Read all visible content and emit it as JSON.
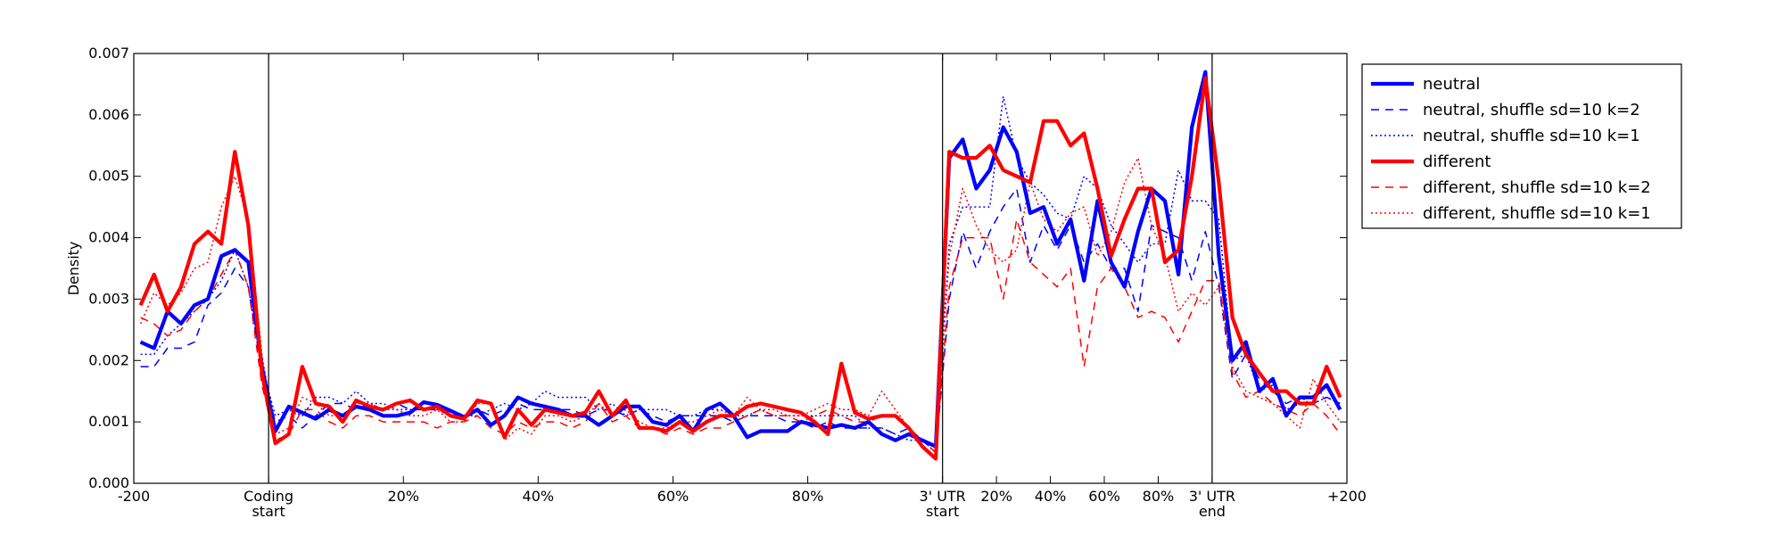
{
  "chart_data": {
    "type": "line",
    "title": "",
    "xlabel": "",
    "ylabel": "Density",
    "ylim": [
      0,
      0.007
    ],
    "y_ticks": [
      "0.000",
      "0.001",
      "0.002",
      "0.003",
      "0.004",
      "0.005",
      "0.006",
      "0.007"
    ],
    "y_tick_values": [
      0,
      0.001,
      0.002,
      0.003,
      0.004,
      0.005,
      0.006,
      0.007
    ],
    "x_ticks": [
      {
        "label": "-200",
        "x": 0
      },
      {
        "label": "Coding\nstart",
        "x": 20
      },
      {
        "label": "20%",
        "x": 40
      },
      {
        "label": "40%",
        "x": 60
      },
      {
        "label": "60%",
        "x": 80
      },
      {
        "label": "80%",
        "x": 100
      },
      {
        "label": "3' UTR\nstart",
        "x": 120
      },
      {
        "label": "20%",
        "x": 128
      },
      {
        "label": "40%",
        "x": 136
      },
      {
        "label": "60%",
        "x": 144
      },
      {
        "label": "80%",
        "x": 152
      },
      {
        "label": "3' UTR\nend",
        "x": 160
      },
      {
        "label": "+200",
        "x": 180
      }
    ],
    "region_boundaries": [
      20,
      120,
      160
    ],
    "xlim": [
      0,
      180
    ],
    "legend_position": "outside-right",
    "x": [
      1,
      3,
      5,
      7,
      9,
      11,
      13,
      15,
      17,
      19,
      21,
      23,
      25,
      27,
      29,
      31,
      33,
      35,
      37,
      39,
      41,
      43,
      45,
      47,
      49,
      51,
      53,
      55,
      57,
      59,
      61,
      63,
      65,
      67,
      69,
      71,
      73,
      75,
      77,
      79,
      81,
      83,
      85,
      87,
      89,
      91,
      93,
      95,
      97,
      99,
      101,
      103,
      105,
      107,
      109,
      111,
      113,
      115,
      117,
      119,
      121,
      123,
      125,
      127,
      129,
      131,
      133,
      135,
      137,
      139,
      141,
      143,
      145,
      147,
      149,
      151,
      153,
      155,
      157,
      159,
      161,
      163,
      165,
      167,
      169,
      171,
      173,
      175,
      177,
      179
    ],
    "series": [
      {
        "name": "neutral",
        "color": "#0000ff",
        "style": "solid",
        "width": 4.2,
        "values": [
          0.0023,
          0.0022,
          0.0028,
          0.0026,
          0.0029,
          0.003,
          0.0037,
          0.0038,
          0.0036,
          0.0019,
          0.00085,
          0.00125,
          0.00115,
          0.00105,
          0.0012,
          0.0011,
          0.00125,
          0.0012,
          0.0011,
          0.0011,
          0.00115,
          0.00132,
          0.00128,
          0.00118,
          0.00108,
          0.0012,
          0.00095,
          0.0011,
          0.0014,
          0.0013,
          0.00125,
          0.0012,
          0.0011,
          0.0011,
          0.00095,
          0.0011,
          0.00125,
          0.00125,
          0.001,
          0.00095,
          0.0011,
          0.00085,
          0.0012,
          0.0013,
          0.0011,
          0.00075,
          0.00085,
          0.00085,
          0.00085,
          0.001,
          0.00095,
          0.0009,
          0.00095,
          0.0009,
          0.001,
          0.0008,
          0.0007,
          0.0008,
          0.0007,
          0.0006,
          0.0053,
          0.0056,
          0.0048,
          0.0051,
          0.0058,
          0.0054,
          0.0044,
          0.0045,
          0.0039,
          0.0043,
          0.0033,
          0.0046,
          0.0036,
          0.0032,
          0.0041,
          0.0048,
          0.0046,
          0.0034,
          0.0058,
          0.0067,
          0.0037,
          0.002,
          0.0023,
          0.0015,
          0.0017,
          0.0011,
          0.0014,
          0.0014,
          0.0016,
          0.0012
        ]
      },
      {
        "name": "neutral, shuffle sd=10 k=2",
        "color": "#0000ff",
        "style": "dashed",
        "width": 1.5,
        "values": [
          0.0019,
          0.0019,
          0.0022,
          0.0022,
          0.0023,
          0.0029,
          0.0031,
          0.0035,
          0.0032,
          0.0018,
          0.001,
          0.0011,
          0.0009,
          0.0011,
          0.0013,
          0.0013,
          0.0012,
          0.0013,
          0.0012,
          0.0013,
          0.0012,
          0.0012,
          0.0012,
          0.0011,
          0.0011,
          0.0012,
          0.0011,
          0.0012,
          0.0013,
          0.0012,
          0.0012,
          0.0012,
          0.0012,
          0.0011,
          0.0012,
          0.0012,
          0.0011,
          0.0012,
          0.0011,
          0.001,
          0.0011,
          0.0011,
          0.0011,
          0.0011,
          0.001,
          0.0011,
          0.0011,
          0.0011,
          0.001,
          0.001,
          0.0009,
          0.001,
          0.0009,
          0.0009,
          0.0009,
          0.0009,
          0.0008,
          0.0009,
          0.0007,
          0.0005,
          0.003,
          0.0041,
          0.0035,
          0.0041,
          0.0045,
          0.0048,
          0.0036,
          0.0042,
          0.0038,
          0.0042,
          0.0036,
          0.0039,
          0.0035,
          0.0035,
          0.0028,
          0.0042,
          0.0041,
          0.004,
          0.0033,
          0.0041,
          0.0032,
          0.0017,
          0.0021,
          0.0017,
          0.0015,
          0.0013,
          0.0014,
          0.0013,
          0.0014,
          0.0013
        ]
      },
      {
        "name": "neutral, shuffle sd=10 k=1",
        "color": "#0000ff",
        "style": "dotted",
        "width": 1.5,
        "values": [
          0.0021,
          0.0021,
          0.0024,
          0.0026,
          0.0028,
          0.003,
          0.0033,
          0.0038,
          0.0032,
          0.0019,
          0.0011,
          0.0012,
          0.0011,
          0.0014,
          0.0014,
          0.0013,
          0.0015,
          0.0013,
          0.0013,
          0.0012,
          0.0012,
          0.0012,
          0.0012,
          0.0012,
          0.0011,
          0.0011,
          0.0012,
          0.0013,
          0.0012,
          0.0013,
          0.0015,
          0.0014,
          0.0014,
          0.0014,
          0.0012,
          0.0013,
          0.0011,
          0.0012,
          0.0012,
          0.0012,
          0.0011,
          0.0011,
          0.0012,
          0.0012,
          0.0011,
          0.0011,
          0.0012,
          0.0011,
          0.0011,
          0.0011,
          0.0011,
          0.0011,
          0.0011,
          0.0011,
          0.0009,
          0.0009,
          0.0008,
          0.0007,
          0.0007,
          0.0006,
          0.0039,
          0.0045,
          0.0045,
          0.0045,
          0.0063,
          0.0053,
          0.0049,
          0.0047,
          0.0044,
          0.0043,
          0.005,
          0.0048,
          0.0042,
          0.0039,
          0.0036,
          0.0039,
          0.0039,
          0.0051,
          0.0046,
          0.0046,
          0.0043,
          0.002,
          0.0021,
          0.0015,
          0.0016,
          0.0012,
          0.0013,
          0.0013,
          0.0014,
          0.0013
        ]
      },
      {
        "name": "different",
        "color": "#ff0000",
        "style": "solid",
        "width": 4.2,
        "values": [
          0.0029,
          0.0034,
          0.0028,
          0.0032,
          0.0039,
          0.0041,
          0.0039,
          0.0054,
          0.0042,
          0.0018,
          0.00065,
          0.0008,
          0.0019,
          0.0013,
          0.00125,
          0.001,
          0.00135,
          0.00125,
          0.0012,
          0.0013,
          0.00135,
          0.0012,
          0.00125,
          0.0011,
          0.00105,
          0.00135,
          0.0013,
          0.00075,
          0.0012,
          0.00095,
          0.0012,
          0.00115,
          0.0011,
          0.00115,
          0.0015,
          0.0011,
          0.00135,
          0.0009,
          0.0009,
          0.00085,
          0.001,
          0.00085,
          0.001,
          0.0011,
          0.0011,
          0.00125,
          0.0013,
          0.00125,
          0.0012,
          0.00115,
          0.001,
          0.0008,
          0.00195,
          0.00115,
          0.00105,
          0.0011,
          0.0011,
          0.0009,
          0.0006,
          0.0004,
          0.0054,
          0.0053,
          0.0053,
          0.0055,
          0.0051,
          0.005,
          0.0049,
          0.0059,
          0.0059,
          0.0055,
          0.0057,
          0.0048,
          0.0037,
          0.0043,
          0.0048,
          0.0048,
          0.0036,
          0.0038,
          0.005,
          0.0066,
          0.0049,
          0.0027,
          0.0021,
          0.0018,
          0.0015,
          0.0015,
          0.0013,
          0.0013,
          0.0019,
          0.0014
        ]
      },
      {
        "name": "different, shuffle sd=10 k=2",
        "color": "#ff0000",
        "style": "dashed",
        "width": 1.5,
        "values": [
          0.0027,
          0.0026,
          0.0024,
          0.0025,
          0.0028,
          0.003,
          0.0034,
          0.0038,
          0.0032,
          0.0016,
          0.0007,
          0.0008,
          0.0012,
          0.0012,
          0.001,
          0.0009,
          0.0011,
          0.0011,
          0.001,
          0.001,
          0.001,
          0.001,
          0.0009,
          0.001,
          0.001,
          0.0011,
          0.0009,
          0.0008,
          0.001,
          0.0009,
          0.001,
          0.001,
          0.0009,
          0.001,
          0.0013,
          0.001,
          0.0011,
          0.0009,
          0.0009,
          0.0008,
          0.0009,
          0.0008,
          0.0009,
          0.0009,
          0.001,
          0.0011,
          0.0012,
          0.0011,
          0.0011,
          0.001,
          0.0011,
          0.0012,
          0.0011,
          0.001,
          0.001,
          0.0011,
          0.0011,
          0.0009,
          0.0007,
          0.0005,
          0.0032,
          0.004,
          0.004,
          0.004,
          0.003,
          0.0043,
          0.0036,
          0.0034,
          0.0032,
          0.0035,
          0.0019,
          0.0032,
          0.0035,
          0.0032,
          0.0027,
          0.0028,
          0.0027,
          0.0023,
          0.0028,
          0.0033,
          0.0033,
          0.0018,
          0.0014,
          0.0015,
          0.0013,
          0.0012,
          0.0011,
          0.0013,
          0.0011,
          0.0008
        ]
      },
      {
        "name": "different, shuffle sd=10 k=1",
        "color": "#ff0000",
        "style": "dotted",
        "width": 1.5,
        "values": [
          0.0026,
          0.0031,
          0.0029,
          0.0031,
          0.0035,
          0.0036,
          0.0045,
          0.005,
          0.0043,
          0.0021,
          0.0008,
          0.0009,
          0.0014,
          0.0013,
          0.0011,
          0.0011,
          0.0013,
          0.0013,
          0.0012,
          0.0012,
          0.0011,
          0.0011,
          0.0012,
          0.001,
          0.001,
          0.0013,
          0.0013,
          0.0007,
          0.0009,
          0.0008,
          0.0011,
          0.0011,
          0.001,
          0.0011,
          0.0013,
          0.0011,
          0.0012,
          0.001,
          0.0009,
          0.0009,
          0.001,
          0.001,
          0.0011,
          0.0012,
          0.0011,
          0.0014,
          0.0012,
          0.0012,
          0.0011,
          0.0011,
          0.0012,
          0.0013,
          0.0012,
          0.0012,
          0.0011,
          0.0015,
          0.0012,
          0.0009,
          0.0007,
          0.0005,
          0.0037,
          0.0048,
          0.0042,
          0.0038,
          0.0036,
          0.0038,
          0.0049,
          0.0043,
          0.0041,
          0.0044,
          0.0045,
          0.0037,
          0.0041,
          0.0049,
          0.0053,
          0.0042,
          0.0037,
          0.0028,
          0.0031,
          0.0029,
          0.0032,
          0.0019,
          0.0015,
          0.0014,
          0.0013,
          0.0011,
          0.0009,
          0.0017,
          0.0013,
          0.001
        ]
      }
    ]
  }
}
